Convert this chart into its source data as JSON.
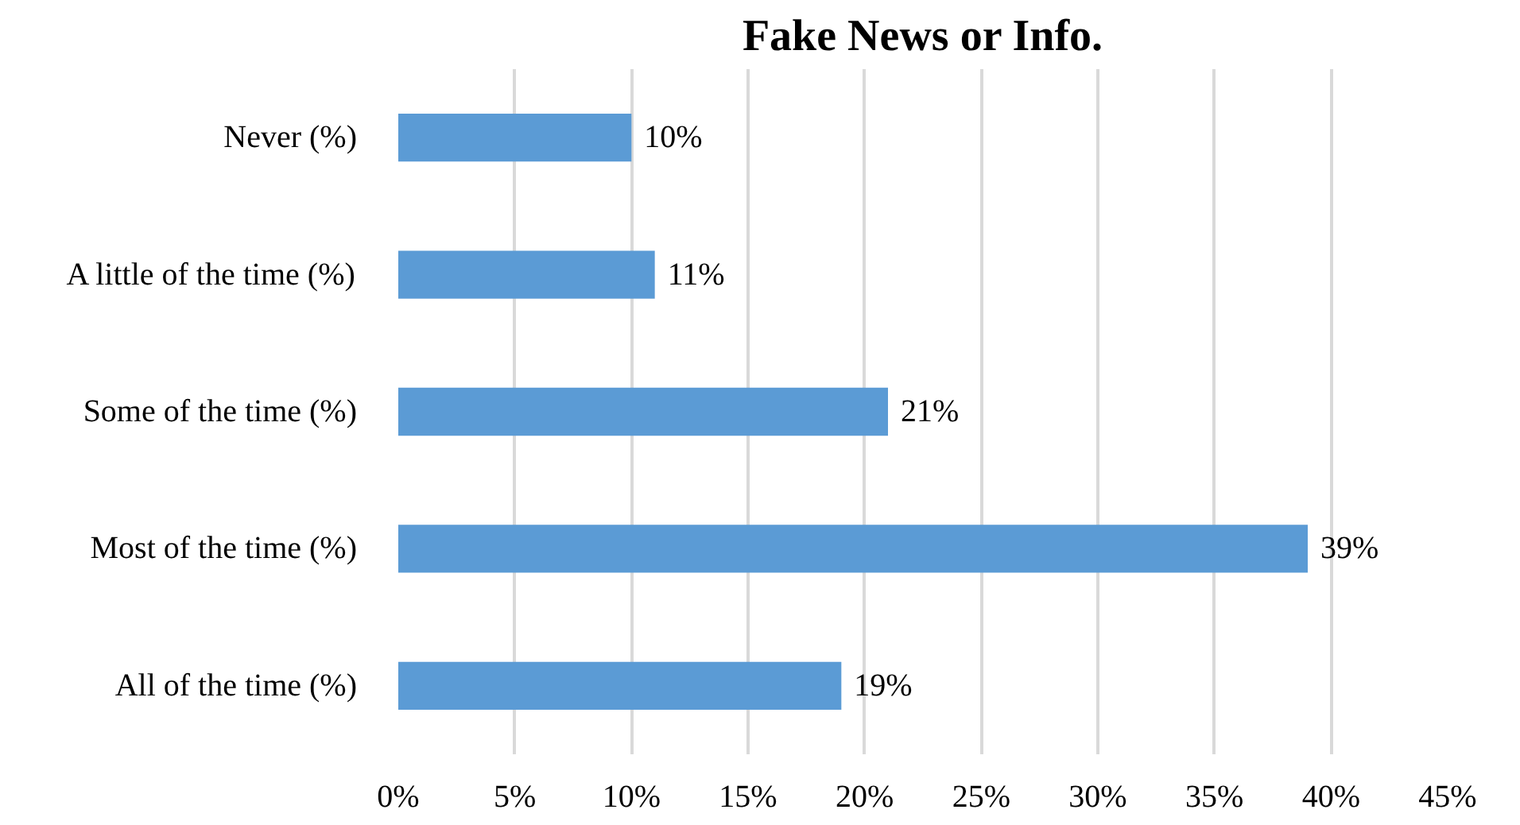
{
  "chart_data": {
    "type": "bar",
    "orientation": "horizontal",
    "title": "Fake News or Info.",
    "categories": [
      "Never (%)",
      "A little of the time (%)",
      "Some of the time (%)",
      "Most of the time (%)",
      "All of the time (%)"
    ],
    "values": [
      10,
      11,
      21,
      39,
      19
    ],
    "value_labels": [
      "10%",
      "11%",
      "21%",
      "39%",
      "19%"
    ],
    "color": "#5b9bd5",
    "xlim": [
      0,
      45
    ],
    "xticks": [
      {
        "value": 0,
        "label": "0%"
      },
      {
        "value": 5,
        "label": "5%"
      },
      {
        "value": 10,
        "label": "10%"
      },
      {
        "value": 15,
        "label": "15%"
      },
      {
        "value": 20,
        "label": "20%"
      },
      {
        "value": 25,
        "label": "25%"
      },
      {
        "value": 30,
        "label": "30%"
      },
      {
        "value": 35,
        "label": "35%"
      },
      {
        "value": 40,
        "label": "40%"
      },
      {
        "value": 45,
        "label": "45%"
      }
    ],
    "grid": "x"
  }
}
